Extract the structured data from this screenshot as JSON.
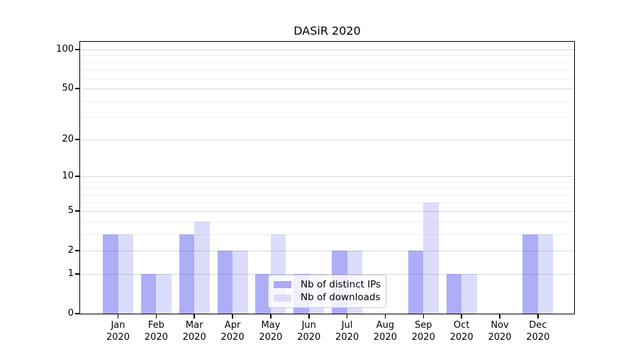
{
  "chart_data": {
    "type": "bar",
    "title": "DASiR 2020",
    "categories": [
      "Jan",
      "Feb",
      "Mar",
      "Apr",
      "May",
      "Jun",
      "Jul",
      "Aug",
      "Sep",
      "Oct",
      "Nov",
      "Dec"
    ],
    "category_year": "2020",
    "series": [
      {
        "name": "Nb of distinct IPs",
        "color": "#a9a9f7",
        "color_rgba": "rgba(80,80,240,0.47)",
        "values": [
          3,
          1,
          3,
          2,
          1,
          1,
          2,
          0,
          2,
          1,
          0,
          3
        ]
      },
      {
        "name": "Nb of downloads",
        "color": "#dcdcfa",
        "color_rgba": "rgba(80,80,240,0.20)",
        "values": [
          3,
          1,
          4,
          2,
          3,
          1,
          2,
          0,
          6,
          1,
          0,
          3
        ]
      }
    ],
    "xlabel": "",
    "ylabel": "",
    "yscale": "log1p",
    "ylim": [
      0,
      113
    ],
    "y_major_ticks": [
      0,
      1,
      2,
      5,
      10,
      20,
      50,
      100
    ],
    "y_minor_ticks": [
      3,
      4,
      6,
      7,
      8,
      9,
      30,
      40,
      60,
      70,
      80,
      90
    ],
    "grid": "horizontal",
    "legend_position": "lower center"
  },
  "colors": {
    "grid_major": "#d8d8d8",
    "grid_minor": "#f0f0f0",
    "spine": "#000000",
    "text": "#000000",
    "legend_border": "#cccccc"
  }
}
